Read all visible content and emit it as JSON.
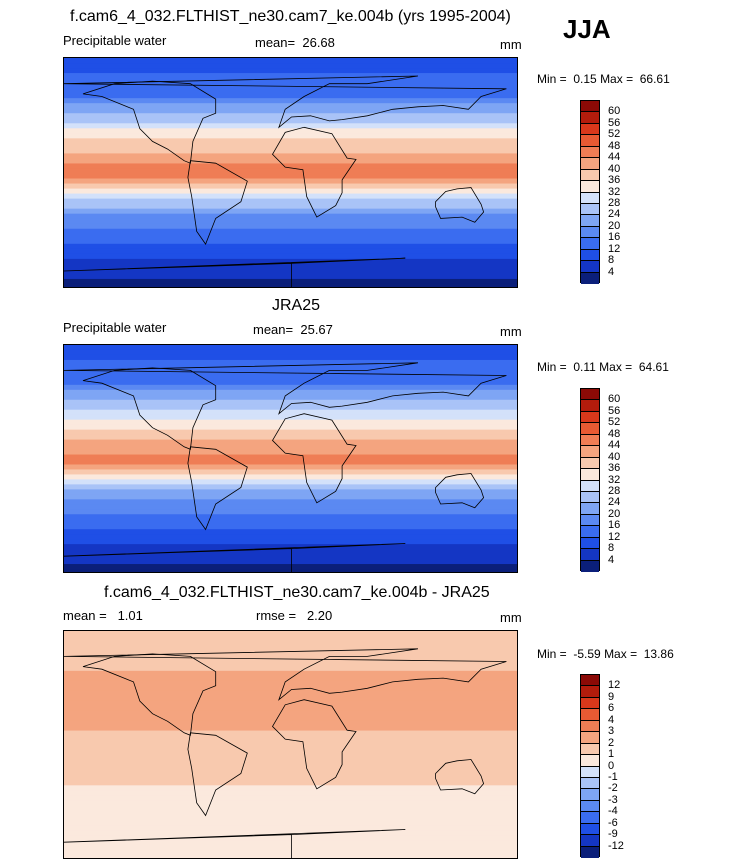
{
  "season": "JJA",
  "panels": [
    {
      "title": "f.cam6_4_032.FLTHIST_ne30.cam7_ke.004b (yrs 1995-2004)",
      "left_label": "Precipitable water",
      "stat_label": "mean=",
      "stat_value": "26.68",
      "stat2_label": "",
      "stat2_value": "",
      "units": "mm",
      "min_label": "Min =",
      "min_value": "0.15",
      "max_label": "Max =",
      "max_value": "66.61"
    },
    {
      "title": "JRA25",
      "left_label": "Precipitable water",
      "stat_label": "mean=",
      "stat_value": "25.67",
      "stat2_label": "",
      "stat2_value": "",
      "units": "mm",
      "min_label": "Min =",
      "min_value": "0.11",
      "max_label": "Max =",
      "max_value": "64.61"
    },
    {
      "title": "f.cam6_4_032.FLTHIST_ne30.cam7_ke.004b - JRA25",
      "left_label": "mean =",
      "stat_label": "1.01",
      "stat_value": "",
      "stat2_label": "rmse =",
      "stat2_value": "2.20",
      "units": "mm",
      "min_label": "Min =",
      "min_value": "-5.59",
      "max_label": "Max =",
      "max_value": "13.86"
    }
  ],
  "chart_data": [
    {
      "type": "heatmap",
      "title": "f.cam6_4_032.FLTHIST_ne30.cam7_ke.004b (yrs 1995-2004)",
      "variable": "Precipitable water",
      "units": "mm",
      "mean": 26.68,
      "min": 0.15,
      "max": 66.61,
      "colorbar_levels": [
        4,
        8,
        12,
        16,
        20,
        24,
        28,
        32,
        36,
        40,
        44,
        48,
        52,
        56,
        60
      ],
      "colorbar_colors": [
        "#0b1f7a",
        "#1436c4",
        "#1f4fe6",
        "#3a6cf0",
        "#5b89f2",
        "#7ea5f4",
        "#a9c3f7",
        "#d3e1fa",
        "#fbe9dd",
        "#f8c9ae",
        "#f4a47f",
        "#ef7d55",
        "#e85a33",
        "#d9381b",
        "#b31c0c",
        "#8b0a06"
      ],
      "lat_profile": {
        "lat": [
          -90,
          -60,
          -30,
          0,
          30,
          60,
          90
        ],
        "value": [
          2,
          10,
          20,
          48,
          34,
          16,
          10
        ]
      }
    },
    {
      "type": "heatmap",
      "title": "JRA25",
      "variable": "Precipitable water",
      "units": "mm",
      "mean": 25.67,
      "min": 0.11,
      "max": 64.61,
      "colorbar_levels": [
        4,
        8,
        12,
        16,
        20,
        24,
        28,
        32,
        36,
        40,
        44,
        48,
        52,
        56,
        60
      ],
      "colorbar_colors": [
        "#0b1f7a",
        "#1436c4",
        "#1f4fe6",
        "#3a6cf0",
        "#5b89f2",
        "#7ea5f4",
        "#a9c3f7",
        "#d3e1fa",
        "#fbe9dd",
        "#f8c9ae",
        "#f4a47f",
        "#ef7d55",
        "#e85a33",
        "#d9381b",
        "#b31c0c",
        "#8b0a06"
      ],
      "lat_profile": {
        "lat": [
          -90,
          -60,
          -30,
          0,
          30,
          60,
          90
        ],
        "value": [
          2,
          10,
          20,
          46,
          33,
          16,
          10
        ]
      }
    },
    {
      "type": "heatmap",
      "title": "f.cam6_4_032.FLTHIST_ne30.cam7_ke.004b - JRA25",
      "units": "mm",
      "mean": 1.01,
      "rmse": 2.2,
      "min": -5.59,
      "max": 13.86,
      "colorbar_levels": [
        -12,
        -9,
        -6,
        -4,
        -3,
        -2,
        -1,
        0,
        1,
        2,
        3,
        4,
        6,
        9,
        12
      ],
      "colorbar_colors": [
        "#0b1f7a",
        "#1436c4",
        "#1f4fe6",
        "#3a6cf0",
        "#5b89f2",
        "#7ea5f4",
        "#a9c3f7",
        "#d3e1fa",
        "#fbe9dd",
        "#f8c9ae",
        "#f4a47f",
        "#ef7d55",
        "#e85a33",
        "#d9381b",
        "#b31c0c",
        "#8b0a06"
      ],
      "lat_profile": {
        "lat": [
          -90,
          -60,
          -30,
          0,
          30,
          60,
          90
        ],
        "value": [
          0.5,
          0.5,
          1,
          1.5,
          3,
          2,
          1
        ]
      }
    }
  ]
}
